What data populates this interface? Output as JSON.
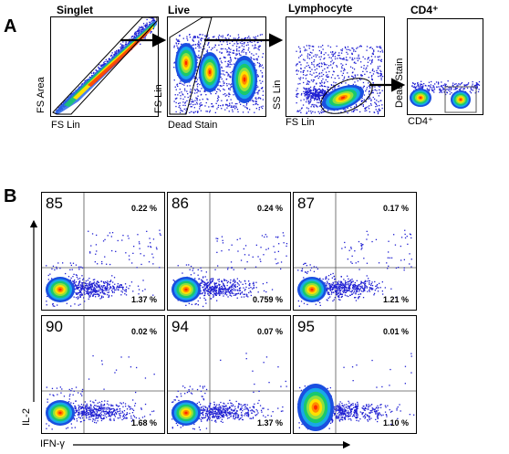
{
  "panel_a": {
    "letter": "A",
    "plots": [
      {
        "title": "Singlet",
        "xlabel": "FS Lin",
        "ylabel": "FS Area"
      },
      {
        "title": "Live",
        "xlabel": "Dead Stain",
        "ylabel": "FS Lin"
      },
      {
        "title": "Lymphocyte",
        "xlabel": "FS Lin",
        "ylabel": "SS Lin"
      },
      {
        "title": "CD4⁺",
        "xlabel": "CD4⁺",
        "ylabel": "Dead Stain"
      }
    ]
  },
  "panel_b": {
    "letter": "B",
    "xlabel": "IFN-γ",
    "ylabel": "IL-2",
    "plots": [
      {
        "donor": "85",
        "upper_right_pct": "0.22 %",
        "lower_right_pct": "1.37 %"
      },
      {
        "donor": "86",
        "upper_right_pct": "0.24 %",
        "lower_right_pct": "0.759 %"
      },
      {
        "donor": "87",
        "upper_right_pct": "0.17 %",
        "lower_right_pct": "1.21 %"
      },
      {
        "donor": "90",
        "upper_right_pct": "0.02 %",
        "lower_right_pct": "1.68 %"
      },
      {
        "donor": "94",
        "upper_right_pct": "0.07 %",
        "lower_right_pct": "1.37 %"
      },
      {
        "donor": "95",
        "upper_right_pct": "0.01 %",
        "lower_right_pct": "1.10 %"
      }
    ]
  },
  "colors": {
    "scatter": "#1e1ed2",
    "density_core": "#ff2a00",
    "density_mid": "#ffe100",
    "density_outer": "#19c86e",
    "gate_line": "#000000"
  }
}
